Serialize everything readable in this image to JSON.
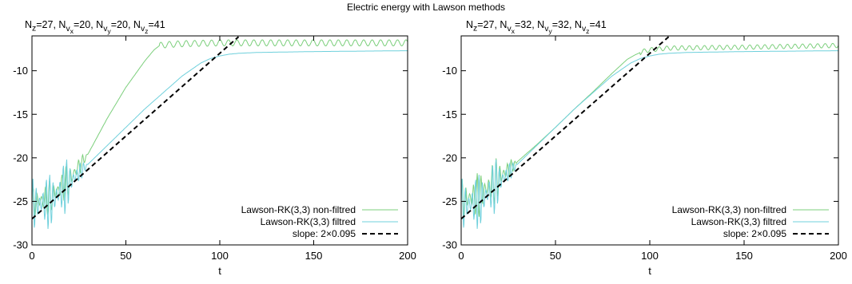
{
  "figure": {
    "title": "Electric energy with Lawson methods"
  },
  "colors": {
    "non_filtred": "#7ccf7c",
    "filtred": "#6fd0dc",
    "slope": "#000000"
  },
  "chart_data": [
    {
      "type": "line",
      "title_parts": {
        "Nz": "27",
        "Nvx": "20",
        "Nvy": "20",
        "Nvz": "41"
      },
      "xlabel": "t",
      "ylabel": "",
      "xlim": [
        0,
        200
      ],
      "ylim": [
        -30,
        -6
      ],
      "xticks": [
        0,
        50,
        100,
        150,
        200
      ],
      "yticks": [
        -30,
        -25,
        -20,
        -15,
        -10
      ],
      "legend_position": "bottom-right",
      "series": [
        {
          "name": "Lawson-RK(3,3) non-filtred",
          "style": "solid",
          "color_key": "non_filtred",
          "x": [
            0,
            10,
            20,
            30,
            40,
            50,
            60,
            65,
            68,
            72,
            80,
            100,
            120,
            150,
            200
          ],
          "y": [
            -25.3,
            -24.5,
            -22.5,
            -19.5,
            -15.5,
            -11.9,
            -8.9,
            -7.6,
            -7.1,
            -7.0,
            -6.9,
            -6.8,
            -6.8,
            -6.8,
            -6.8
          ],
          "oscillation": {
            "x_range": [
              0,
              30
            ],
            "amplitude": 2.0,
            "period": 2.2,
            "damp_from": 22
          },
          "late_wiggle": {
            "x_range": [
              68,
              200
            ],
            "amplitude": 0.35,
            "period": 4.5
          }
        },
        {
          "name": "Lawson-RK(3,3) filtred",
          "style": "solid",
          "color_key": "filtred",
          "x": [
            0,
            10,
            20,
            30,
            40,
            50,
            60,
            70,
            80,
            90,
            95,
            100,
            105,
            110,
            120,
            150,
            200
          ],
          "y": [
            -25.5,
            -25.0,
            -22.8,
            -20.7,
            -18.6,
            -16.5,
            -14.4,
            -12.5,
            -10.6,
            -9.1,
            -8.6,
            -8.3,
            -8.1,
            -8.0,
            -7.9,
            -7.8,
            -7.7
          ],
          "oscillation": {
            "x_range": [
              0,
              30
            ],
            "amplitude": 3.2,
            "period": 1.8,
            "damp_from": 18
          }
        },
        {
          "name": "slope: 2×0.095",
          "style": "dashed",
          "color_key": "slope",
          "x": [
            0,
            110
          ],
          "y": [
            -27.0,
            -6.1
          ]
        }
      ]
    },
    {
      "type": "line",
      "title_parts": {
        "Nz": "27",
        "Nvx": "32",
        "Nvy": "32",
        "Nvz": "41"
      },
      "xlabel": "t",
      "ylabel": "",
      "xlim": [
        0,
        200
      ],
      "ylim": [
        -30,
        -6
      ],
      "xticks": [
        0,
        50,
        100,
        150,
        200
      ],
      "yticks": [
        -30,
        -25,
        -20,
        -15,
        -10
      ],
      "legend_position": "bottom-right",
      "series": [
        {
          "name": "Lawson-RK(3,3) non-filtred",
          "style": "solid",
          "color_key": "non_filtred",
          "x": [
            0,
            10,
            20,
            30,
            40,
            50,
            60,
            70,
            80,
            88,
            92,
            96,
            100,
            110,
            150,
            200
          ],
          "y": [
            -25.0,
            -24.2,
            -22.3,
            -20.4,
            -18.5,
            -16.5,
            -14.4,
            -12.4,
            -10.3,
            -8.7,
            -8.2,
            -7.8,
            -7.6,
            -7.4,
            -7.3,
            -7.1
          ],
          "oscillation": {
            "x_range": [
              0,
              30
            ],
            "amplitude": 2.6,
            "period": 2.0,
            "damp_from": 20
          },
          "late_wiggle": {
            "x_range": [
              95,
              200
            ],
            "amplitude": 0.25,
            "period": 4.0
          }
        },
        {
          "name": "Lawson-RK(3,3) filtred",
          "style": "solid",
          "color_key": "filtred",
          "x": [
            0,
            10,
            20,
            30,
            40,
            50,
            60,
            70,
            80,
            90,
            95,
            100,
            105,
            110,
            120,
            150,
            200
          ],
          "y": [
            -25.5,
            -25.0,
            -22.8,
            -20.7,
            -18.6,
            -16.5,
            -14.4,
            -12.5,
            -10.6,
            -9.1,
            -8.6,
            -8.3,
            -8.1,
            -8.0,
            -7.9,
            -7.8,
            -7.7
          ],
          "oscillation": {
            "x_range": [
              0,
              30
            ],
            "amplitude": 3.2,
            "period": 1.8,
            "damp_from": 18
          }
        },
        {
          "name": "slope: 2×0.095",
          "style": "dashed",
          "color_key": "slope",
          "x": [
            0,
            110
          ],
          "y": [
            -27.0,
            -6.1
          ]
        }
      ]
    }
  ]
}
